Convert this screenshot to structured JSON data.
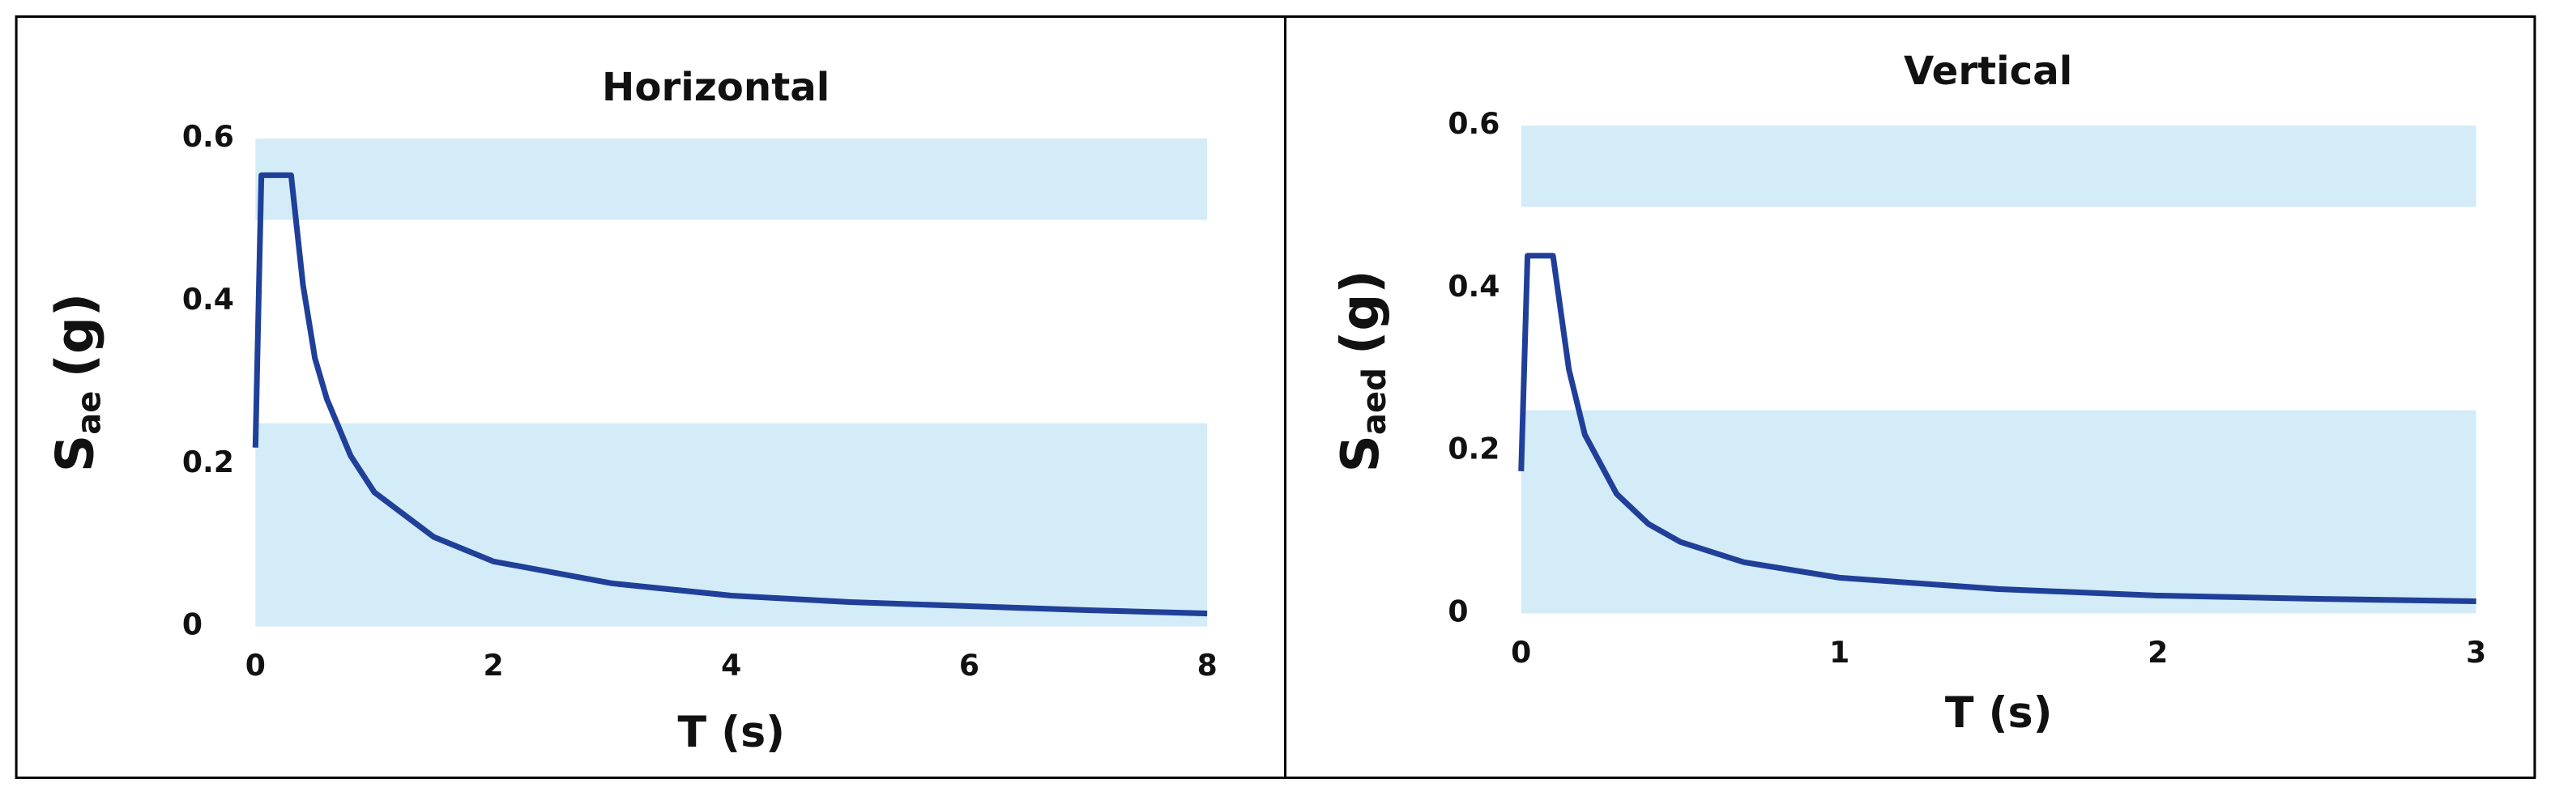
{
  "chart_data": [
    {
      "type": "line",
      "title": "Horizontal",
      "x_label": "T (s)",
      "y_label": {
        "symbol": "S",
        "subscript": "ae",
        "unit": "(g)"
      },
      "x": [
        0,
        0.05,
        0.3,
        0.4,
        0.5,
        0.6,
        0.8,
        1,
        1.5,
        2,
        3,
        4,
        5,
        6,
        7,
        8
      ],
      "series": [
        {
          "color": "#1f3f99",
          "values": [
            0.22,
            0.555,
            0.555,
            0.42,
            0.33,
            0.28,
            0.21,
            0.165,
            0.11,
            0.08,
            0.053,
            0.038,
            0.03,
            0.025,
            0.02,
            0.016
          ]
        }
      ],
      "bands": [
        [
          0.5,
          0.6
        ],
        [
          0,
          0.25
        ]
      ],
      "band_color": "#d3ecf7",
      "xlim": [
        0,
        8
      ],
      "xticks": [
        0,
        2,
        4,
        6,
        8
      ],
      "ylim": [
        0,
        0.6
      ],
      "yticks": [
        0,
        0.2,
        0.4,
        0.6
      ]
    },
    {
      "type": "line",
      "title": "Vertical",
      "x_label": "T (s)",
      "y_label": {
        "symbol": "S",
        "subscript": "aed",
        "unit": "(g)"
      },
      "x": [
        0,
        0.02,
        0.1,
        0.15,
        0.2,
        0.3,
        0.4,
        0.5,
        0.7,
        1,
        1.5,
        2,
        2.5,
        3
      ],
      "series": [
        {
          "color": "#1f3f99",
          "values": [
            0.175,
            0.44,
            0.44,
            0.3,
            0.22,
            0.147,
            0.11,
            0.088,
            0.063,
            0.044,
            0.03,
            0.022,
            0.018,
            0.015
          ]
        }
      ],
      "bands": [
        [
          0.5,
          0.6
        ],
        [
          0,
          0.25
        ]
      ],
      "band_color": "#d3ecf7",
      "xlim": [
        0,
        3
      ],
      "xticks": [
        0,
        1,
        2,
        3
      ],
      "ylim": [
        0,
        0.6
      ],
      "yticks": [
        0,
        0.2,
        0.4,
        0.6
      ]
    }
  ]
}
